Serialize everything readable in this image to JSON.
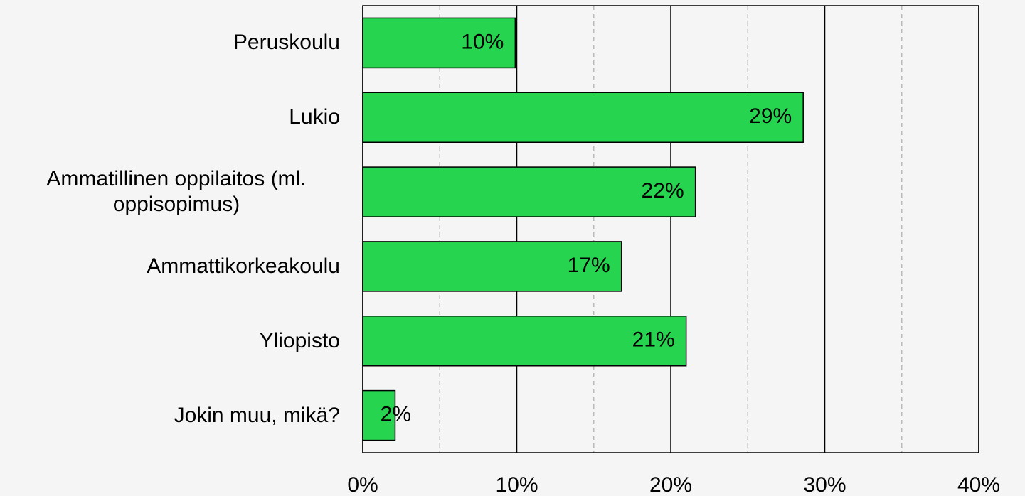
{
  "chart_data": {
    "type": "barh",
    "categories": [
      "Peruskoulu",
      "Lukio",
      "Ammatillinen oppilaitos (ml. oppisopimus)",
      "Ammattikorkeakoulu",
      "Yliopisto",
      "Jokin muu, mikä?"
    ],
    "values": [
      9.9,
      28.6,
      21.6,
      16.8,
      21.0,
      2.1
    ],
    "value_labels": [
      "10%",
      "29%",
      "22%",
      "17%",
      "21%",
      "2%"
    ],
    "color": "#26d44f",
    "xlim": [
      0,
      40
    ],
    "xticks": [
      {
        "value": 0,
        "label": "0%"
      },
      {
        "value": 10,
        "label": "10%"
      },
      {
        "value": 20,
        "label": "20%"
      },
      {
        "value": 30,
        "label": "30%"
      },
      {
        "value": 40,
        "label": "40%"
      }
    ],
    "minor_xticks": [
      5,
      15,
      25,
      35
    ],
    "grid": true
  }
}
